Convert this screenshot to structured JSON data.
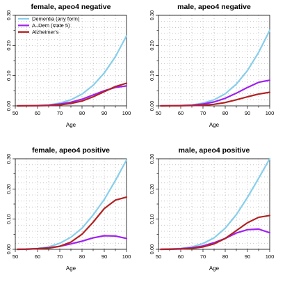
{
  "chart_data": {
    "type": "line",
    "xlabel": "Age",
    "xlim": [
      50,
      100
    ],
    "ylim": [
      0,
      0.3
    ],
    "x_ticks": [
      50,
      60,
      70,
      80,
      90,
      100
    ],
    "y_ticks": [
      "0.00",
      "0.10",
      "0.20",
      "0.30"
    ],
    "grid": true,
    "legend": {
      "placement": "top-left",
      "entries": [
        "Dementia (any form)",
        "A–Dem (state 5)",
        "Alzheimer's"
      ]
    },
    "colors": {
      "dementia": "#87CEEB",
      "adem": "#A020F0",
      "alzheimers": "#B22222"
    },
    "x": [
      51,
      55,
      60,
      65,
      70,
      75,
      80,
      85,
      90,
      95,
      100
    ],
    "panels": [
      {
        "title": "female, apeo4 negative",
        "series": [
          {
            "key": "dementia",
            "values": [
              0.0,
              0.0003,
              0.001,
              0.003,
              0.009,
              0.02,
              0.039,
              0.068,
              0.109,
              0.163,
              0.232
            ]
          },
          {
            "key": "adem",
            "values": [
              0.0,
              0.0002,
              0.0008,
              0.002,
              0.006,
              0.012,
              0.022,
              0.036,
              0.05,
              0.061,
              0.066
            ]
          },
          {
            "key": "alzheimers",
            "values": [
              0.0,
              0.0001,
              0.0004,
              0.001,
              0.003,
              0.008,
              0.016,
              0.03,
              0.047,
              0.064,
              0.075
            ]
          }
        ]
      },
      {
        "title": "male, apeo4 negative",
        "series": [
          {
            "key": "dementia",
            "values": [
              0.0,
              0.0003,
              0.001,
              0.003,
              0.009,
              0.02,
              0.04,
              0.072,
              0.117,
              0.177,
              0.25
            ]
          },
          {
            "key": "adem",
            "values": [
              0.0,
              0.0002,
              0.0008,
              0.002,
              0.006,
              0.013,
              0.025,
              0.042,
              0.061,
              0.078,
              0.085
            ]
          },
          {
            "key": "alzheimers",
            "values": [
              0.0,
              0.0001,
              0.0004,
              0.001,
              0.002,
              0.005,
              0.011,
              0.02,
              0.03,
              0.039,
              0.045
            ]
          }
        ]
      },
      {
        "title": "female, apeo4 positive",
        "series": [
          {
            "key": "dementia",
            "values": [
              0.0,
              0.001,
              0.003,
              0.008,
              0.02,
              0.04,
              0.07,
              0.114,
              0.165,
              0.228,
              0.296
            ]
          },
          {
            "key": "adem",
            "values": [
              0.0,
              0.0004,
              0.002,
              0.005,
              0.01,
              0.018,
              0.027,
              0.038,
              0.045,
              0.044,
              0.036
            ]
          },
          {
            "key": "alzheimers",
            "values": [
              0.0,
              0.0004,
              0.002,
              0.004,
              0.01,
              0.024,
              0.05,
              0.09,
              0.135,
              0.163,
              0.173
            ]
          }
        ]
      },
      {
        "title": "male, apeo4 positive",
        "series": [
          {
            "key": "dementia",
            "values": [
              0.0,
              0.001,
              0.003,
              0.008,
              0.019,
              0.038,
              0.07,
              0.115,
              0.172,
              0.235,
              0.3
            ]
          },
          {
            "key": "adem",
            "values": [
              0.0,
              0.0005,
              0.002,
              0.005,
              0.011,
              0.022,
              0.036,
              0.054,
              0.065,
              0.067,
              0.055
            ]
          },
          {
            "key": "alzheimers",
            "values": [
              0.0,
              0.0003,
              0.001,
              0.003,
              0.008,
              0.018,
              0.036,
              0.062,
              0.088,
              0.106,
              0.112
            ]
          }
        ]
      }
    ]
  }
}
